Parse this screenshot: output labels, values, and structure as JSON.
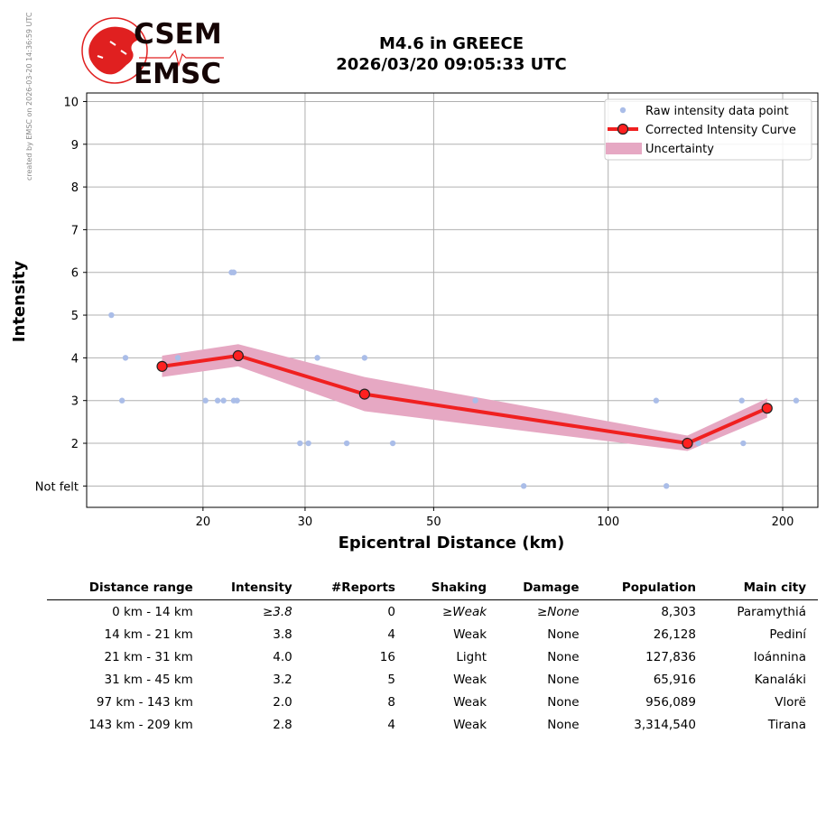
{
  "watermark": "created by EMSC on 2026-03-20 14:36:59 UTC",
  "logo": {
    "line1": "CSEM",
    "line2": "EMSC",
    "color": "#e02020"
  },
  "title": {
    "line1": "M4.6 in GREECE",
    "line2": "2026/03/20 09:05:33 UTC"
  },
  "chart_data": {
    "type": "line",
    "xlabel": "Epicentral Distance (km)",
    "ylabel": "Intensity",
    "xscale": "log",
    "xlim": [
      12.6,
      230
    ],
    "ylim": [
      0.5,
      10.2
    ],
    "xticks": [
      20,
      30,
      50,
      100,
      200
    ],
    "yticks": [
      {
        "value": 1,
        "label": "Not felt"
      },
      {
        "value": 2,
        "label": "2"
      },
      {
        "value": 3,
        "label": "3"
      },
      {
        "value": 4,
        "label": "4"
      },
      {
        "value": 5,
        "label": "5"
      },
      {
        "value": 6,
        "label": "6"
      },
      {
        "value": 7,
        "label": "7"
      },
      {
        "value": 8,
        "label": "8"
      },
      {
        "value": 9,
        "label": "9"
      },
      {
        "value": 10,
        "label": "10"
      }
    ],
    "grid": true,
    "legend_position": "top-right",
    "colors": {
      "raw": "#aabde8",
      "curve": "#f02020",
      "marker_face": "#ff2020",
      "uncertainty": "#e6a8c3",
      "grid": "#b0b0b0"
    },
    "series": [
      {
        "name": "Raw intensity data point",
        "kind": "scatter",
        "points": [
          [
            13.9,
            5
          ],
          [
            14.7,
            4
          ],
          [
            14.5,
            3
          ],
          [
            18.1,
            4
          ],
          [
            20.2,
            3
          ],
          [
            21.2,
            3
          ],
          [
            21.7,
            3
          ],
          [
            22.4,
            6
          ],
          [
            22.6,
            6
          ],
          [
            22.6,
            3
          ],
          [
            22.9,
            3
          ],
          [
            29.4,
            2
          ],
          [
            30.4,
            2
          ],
          [
            31.5,
            4
          ],
          [
            35.4,
            2
          ],
          [
            38.0,
            4
          ],
          [
            42.5,
            2
          ],
          [
            59.0,
            3
          ],
          [
            71.5,
            1
          ],
          [
            121.0,
            3
          ],
          [
            126.0,
            1
          ],
          [
            138.0,
            2
          ],
          [
            143.0,
            2
          ],
          [
            170.0,
            3
          ],
          [
            171.0,
            2
          ],
          [
            211.0,
            3
          ]
        ]
      },
      {
        "name": "Corrected Intensity Curve",
        "kind": "line",
        "points": [
          [
            17.0,
            3.8
          ],
          [
            23.0,
            4.05
          ],
          [
            38.0,
            3.15
          ],
          [
            137.0,
            2.0
          ],
          [
            188.0,
            2.82
          ]
        ]
      },
      {
        "name": "Uncertainty",
        "kind": "band",
        "points": [
          {
            "x": 17.0,
            "low": 3.55,
            "high": 4.05
          },
          {
            "x": 23.0,
            "low": 3.8,
            "high": 4.32
          },
          {
            "x": 38.0,
            "low": 2.75,
            "high": 3.55
          },
          {
            "x": 137.0,
            "low": 1.82,
            "high": 2.18
          },
          {
            "x": 188.0,
            "low": 2.6,
            "high": 3.05
          }
        ]
      }
    ]
  },
  "table": {
    "headers": [
      "Distance range",
      "Intensity",
      "#Reports",
      "Shaking",
      "Damage",
      "Population",
      "Main city"
    ],
    "rows": [
      [
        "0 km -   14 km",
        "≥3.8",
        "0",
        "≥Weak",
        "≥None",
        "8,303",
        "Paramythiá"
      ],
      [
        "14 km -   21 km",
        "3.8",
        "4",
        "Weak",
        "None",
        "26,128",
        "Pediní"
      ],
      [
        "21 km -   31 km",
        "4.0",
        "16",
        "Light",
        "None",
        "127,836",
        "Ioánnina"
      ],
      [
        "31 km -   45 km",
        "3.2",
        "5",
        "Weak",
        "None",
        "65,916",
        "Kanaláki"
      ],
      [
        "97 km -  143 km",
        "2.0",
        "8",
        "Weak",
        "None",
        "956,089",
        "Vlorë"
      ],
      [
        "143 km -  209 km",
        "2.8",
        "4",
        "Weak",
        "None",
        "3,314,540",
        "Tirana"
      ]
    ]
  }
}
